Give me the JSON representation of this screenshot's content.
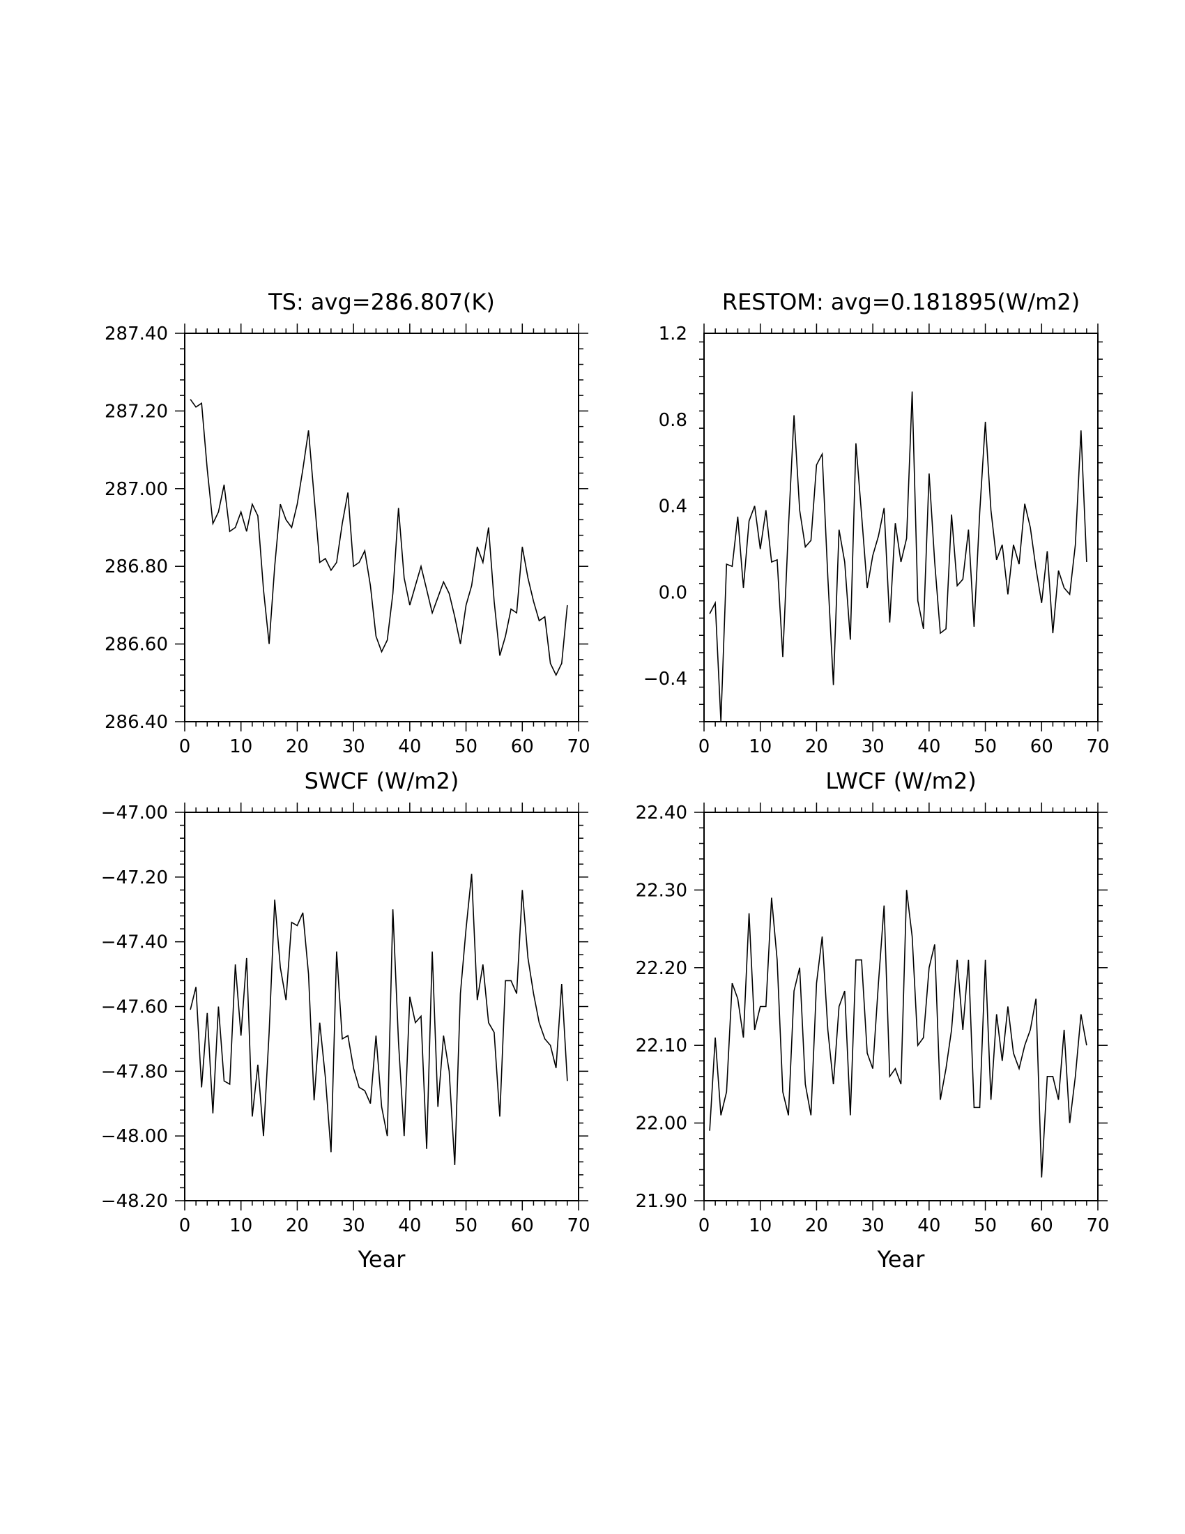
{
  "chart_data": [
    {
      "type": "line",
      "title": "TS: avg=286.807(K)",
      "xlabel": "",
      "ylabel": "",
      "xlim": [
        0,
        70
      ],
      "ylim": [
        286.4,
        287.4
      ],
      "xticks": [
        0,
        10,
        20,
        30,
        40,
        50,
        60,
        70
      ],
      "xtick_labels": [
        "0",
        "10",
        "20",
        "30",
        "40",
        "50",
        "60",
        "70"
      ],
      "yticks": [
        286.4,
        286.6,
        286.8,
        287.0,
        287.2,
        287.4
      ],
      "ytick_labels": [
        "286.40",
        "286.60",
        "286.80",
        "287.00",
        "287.20",
        "287.40"
      ],
      "x": [
        1,
        2,
        3,
        4,
        5,
        6,
        7,
        8,
        9,
        10,
        11,
        12,
        13,
        14,
        15,
        16,
        17,
        18,
        19,
        20,
        21,
        22,
        23,
        24,
        25,
        26,
        27,
        28,
        29,
        30,
        31,
        32,
        33,
        34,
        35,
        36,
        37,
        38,
        39,
        40,
        41,
        42,
        43,
        44,
        45,
        46,
        47,
        48,
        49,
        50,
        51,
        52,
        53,
        54,
        55,
        56,
        57,
        58,
        59,
        60,
        61,
        62,
        63,
        64,
        65,
        66,
        67,
        68
      ],
      "values": [
        287.23,
        287.21,
        287.22,
        287.05,
        286.91,
        286.94,
        287.01,
        286.89,
        286.9,
        286.94,
        286.89,
        286.96,
        286.93,
        286.74,
        286.6,
        286.8,
        286.96,
        286.92,
        286.9,
        286.96,
        287.05,
        287.15,
        286.98,
        286.81,
        286.82,
        286.79,
        286.81,
        286.91,
        286.99,
        286.8,
        286.81,
        286.84,
        286.75,
        286.62,
        286.58,
        286.61,
        286.73,
        286.95,
        286.77,
        286.7,
        286.75,
        286.8,
        286.74,
        286.68,
        286.72,
        286.76,
        286.73,
        286.67,
        286.6,
        286.7,
        286.75,
        286.85,
        286.81,
        286.9,
        286.71,
        286.57,
        286.62,
        286.69,
        286.68,
        286.85,
        286.77,
        286.71,
        286.66,
        286.67,
        286.55,
        286.52,
        286.55,
        286.7
      ]
    },
    {
      "type": "line",
      "title": "RESTOM: avg=0.181895(W/m2)",
      "xlabel": "",
      "ylabel": "",
      "xlim": [
        0,
        70
      ],
      "ylim": [
        -0.6,
        1.2
      ],
      "xticks": [
        0,
        10,
        20,
        30,
        40,
        50,
        60,
        70
      ],
      "xtick_labels": [
        "0",
        "10",
        "20",
        "30",
        "40",
        "50",
        "60",
        "70"
      ],
      "yticks": [
        -0.4,
        0.0,
        0.4,
        0.8,
        1.2
      ],
      "ytick_labels": [
        "−0.4",
        "0.0",
        "0.4",
        "0.8",
        "1.2"
      ],
      "x": [
        1,
        2,
        3,
        4,
        5,
        6,
        7,
        8,
        9,
        10,
        11,
        12,
        13,
        14,
        15,
        16,
        17,
        18,
        19,
        20,
        21,
        22,
        23,
        24,
        25,
        26,
        27,
        28,
        29,
        30,
        31,
        32,
        33,
        34,
        35,
        36,
        37,
        38,
        39,
        40,
        41,
        42,
        43,
        44,
        45,
        46,
        47,
        48,
        49,
        50,
        51,
        52,
        53,
        54,
        55,
        56,
        57,
        58,
        59,
        60,
        61,
        62,
        63,
        64,
        65,
        66,
        67,
        68
      ],
      "values": [
        -0.1,
        -0.05,
        -0.6,
        0.13,
        0.12,
        0.35,
        0.02,
        0.33,
        0.4,
        0.2,
        0.38,
        0.14,
        0.15,
        -0.3,
        0.3,
        0.82,
        0.38,
        0.21,
        0.24,
        0.59,
        0.64,
        0.07,
        -0.43,
        0.29,
        0.14,
        -0.22,
        0.69,
        0.36,
        0.02,
        0.17,
        0.26,
        0.39,
        -0.14,
        0.32,
        0.14,
        0.25,
        0.93,
        -0.04,
        -0.17,
        0.55,
        0.14,
        -0.19,
        -0.17,
        0.36,
        0.03,
        0.06,
        0.29,
        -0.16,
        0.37,
        0.79,
        0.38,
        0.15,
        0.22,
        -0.01,
        0.22,
        0.13,
        0.41,
        0.3,
        0.11,
        -0.05,
        0.19,
        -0.19,
        0.1,
        0.02,
        -0.01,
        0.22,
        0.75,
        0.14
      ]
    },
    {
      "type": "line",
      "title": "SWCF (W/m2)",
      "xlabel": "Year",
      "ylabel": "",
      "xlim": [
        0,
        70
      ],
      "ylim": [
        -48.2,
        -47.0
      ],
      "xticks": [
        0,
        10,
        20,
        30,
        40,
        50,
        60,
        70
      ],
      "xtick_labels": [
        "0",
        "10",
        "20",
        "30",
        "40",
        "50",
        "60",
        "70"
      ],
      "yticks": [
        -48.2,
        -48.0,
        -47.8,
        -47.6,
        -47.4,
        -47.2,
        -47.0
      ],
      "ytick_labels": [
        "−48.20",
        "−48.00",
        "−47.80",
        "−47.60",
        "−47.40",
        "−47.20",
        "−47.00"
      ],
      "x": [
        1,
        2,
        3,
        4,
        5,
        6,
        7,
        8,
        9,
        10,
        11,
        12,
        13,
        14,
        15,
        16,
        17,
        18,
        19,
        20,
        21,
        22,
        23,
        24,
        25,
        26,
        27,
        28,
        29,
        30,
        31,
        32,
        33,
        34,
        35,
        36,
        37,
        38,
        39,
        40,
        41,
        42,
        43,
        44,
        45,
        46,
        47,
        48,
        49,
        50,
        51,
        52,
        53,
        54,
        55,
        56,
        57,
        58,
        59,
        60,
        61,
        62,
        63,
        64,
        65,
        66,
        67,
        68
      ],
      "values": [
        -47.61,
        -47.54,
        -47.85,
        -47.62,
        -47.93,
        -47.6,
        -47.83,
        -47.84,
        -47.47,
        -47.69,
        -47.45,
        -47.94,
        -47.78,
        -48.0,
        -47.68,
        -47.27,
        -47.48,
        -47.58,
        -47.34,
        -47.35,
        -47.31,
        -47.5,
        -47.89,
        -47.65,
        -47.82,
        -48.05,
        -47.43,
        -47.7,
        -47.69,
        -47.79,
        -47.85,
        -47.86,
        -47.9,
        -47.69,
        -47.91,
        -48.0,
        -47.3,
        -47.71,
        -48.0,
        -47.57,
        -47.65,
        -47.63,
        -48.04,
        -47.43,
        -47.91,
        -47.69,
        -47.8,
        -48.09,
        -47.56,
        -47.36,
        -47.19,
        -47.58,
        -47.47,
        -47.65,
        -47.68,
        -47.94,
        -47.52,
        -47.52,
        -47.56,
        -47.24,
        -47.45,
        -47.56,
        -47.65,
        -47.7,
        -47.72,
        -47.79,
        -47.53,
        -47.83
      ]
    },
    {
      "type": "line",
      "title": "LWCF (W/m2)",
      "xlabel": "Year",
      "ylabel": "",
      "xlim": [
        0,
        70
      ],
      "ylim": [
        21.9,
        22.4
      ],
      "xticks": [
        0,
        10,
        20,
        30,
        40,
        50,
        60,
        70
      ],
      "xtick_labels": [
        "0",
        "10",
        "20",
        "30",
        "40",
        "50",
        "60",
        "70"
      ],
      "yticks": [
        21.9,
        22.0,
        22.1,
        22.2,
        22.3,
        22.4
      ],
      "ytick_labels": [
        "21.90",
        "22.00",
        "22.10",
        "22.20",
        "22.30",
        "22.40"
      ],
      "x": [
        1,
        2,
        3,
        4,
        5,
        6,
        7,
        8,
        9,
        10,
        11,
        12,
        13,
        14,
        15,
        16,
        17,
        18,
        19,
        20,
        21,
        22,
        23,
        24,
        25,
        26,
        27,
        28,
        29,
        30,
        31,
        32,
        33,
        34,
        35,
        36,
        37,
        38,
        39,
        40,
        41,
        42,
        43,
        44,
        45,
        46,
        47,
        48,
        49,
        50,
        51,
        52,
        53,
        54,
        55,
        56,
        57,
        58,
        59,
        60,
        61,
        62,
        63,
        64,
        65,
        66,
        67,
        68
      ],
      "values": [
        21.99,
        22.11,
        22.01,
        22.04,
        22.18,
        22.16,
        22.11,
        22.27,
        22.12,
        22.15,
        22.15,
        22.29,
        22.21,
        22.04,
        22.01,
        22.17,
        22.2,
        22.05,
        22.01,
        22.18,
        22.24,
        22.12,
        22.05,
        22.15,
        22.17,
        22.01,
        22.21,
        22.21,
        22.09,
        22.07,
        22.18,
        22.28,
        22.06,
        22.07,
        22.05,
        22.3,
        22.24,
        22.1,
        22.11,
        22.2,
        22.23,
        22.03,
        22.07,
        22.12,
        22.21,
        22.12,
        22.21,
        22.02,
        22.02,
        22.21,
        22.03,
        22.14,
        22.08,
        22.15,
        22.09,
        22.07,
        22.1,
        22.12,
        22.16,
        21.93,
        22.06,
        22.06,
        22.03,
        22.12,
        22.0,
        22.06,
        22.14,
        22.1
      ]
    }
  ]
}
